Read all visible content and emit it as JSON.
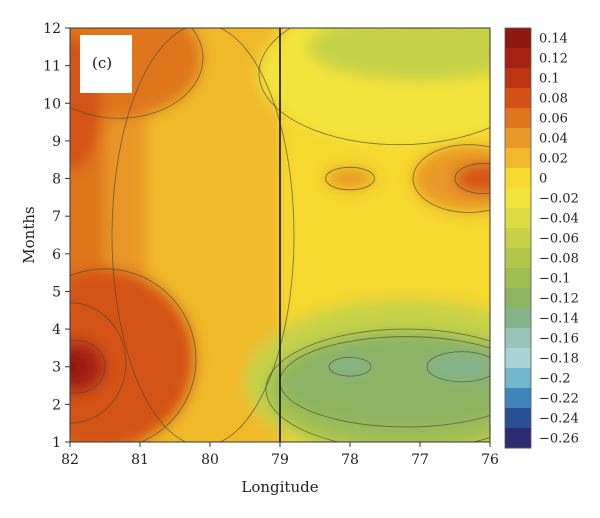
{
  "chart_data": {
    "type": "heatmap",
    "subtype": "filled-contour",
    "panel_label": "(c)",
    "xlabel": "Longitude",
    "ylabel": "Months",
    "x_ticks": [
      "82",
      "81",
      "80",
      "79",
      "78",
      "77",
      "76"
    ],
    "x_tick_values": [
      82,
      81,
      80,
      79,
      78,
      77,
      76
    ],
    "x_range": [
      82,
      76
    ],
    "x_reversed": true,
    "y_ticks": [
      "1",
      "2",
      "3",
      "4",
      "5",
      "6",
      "7",
      "8",
      "9",
      "10",
      "11",
      "12"
    ],
    "y_tick_values": [
      1,
      2,
      3,
      4,
      5,
      6,
      7,
      8,
      9,
      10,
      11,
      12
    ],
    "y_range": [
      1,
      12
    ],
    "vertical_reference_line_x": 79,
    "colorbar": {
      "labels": [
        "0.14",
        "0.12",
        "0.1",
        "0.08",
        "0.06",
        "0.04",
        "0.02",
        "0",
        "−0.02",
        "−0.04",
        "−0.06",
        "−0.08",
        "−0.1",
        "−0.12",
        "−0.14",
        "−0.16",
        "−0.18",
        "−0.2",
        "−0.22",
        "−0.24",
        "−0.26"
      ],
      "values": [
        0.14,
        0.12,
        0.1,
        0.08,
        0.06,
        0.04,
        0.02,
        0,
        -0.02,
        -0.04,
        -0.06,
        -0.08,
        -0.1,
        -0.12,
        -0.14,
        -0.16,
        -0.18,
        -0.2,
        -0.22,
        -0.24,
        -0.26
      ],
      "colors": [
        "#8e1710",
        "#a62212",
        "#bd3414",
        "#d45219",
        "#df761f",
        "#e89827",
        "#f0b92c",
        "#f6d82f",
        "#f2e33a",
        "#dbdb42",
        "#c6d146",
        "#b2c74a",
        "#9ebd52",
        "#8cb463",
        "#86b38a",
        "#99c4b8",
        "#a9d3d3",
        "#72b6cc",
        "#3f85ba",
        "#2a4f96",
        "#2b2b72"
      ]
    },
    "grid": false,
    "legend": "colorbar-right",
    "field_description": "Filled contours of value versus longitude and month; positive values (orange/red) west of 79, peaking about 0.14 near 82 at month 3; negative values (green/teal) east of 79 in months 1–5 reaching about −0.14; near-zero yellow band around 80–79"
  }
}
